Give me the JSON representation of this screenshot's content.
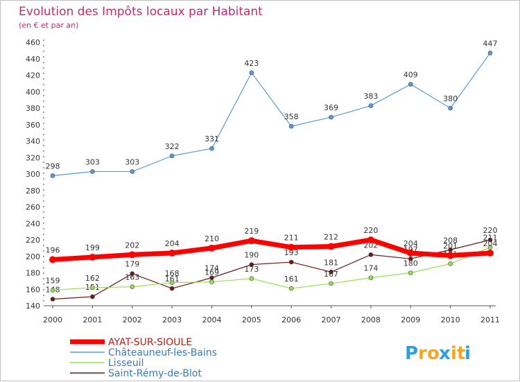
{
  "chart_data": {
    "type": "line",
    "title": "Evolution des Impôts locaux par Habitant",
    "subtitle": "(en € et par an)",
    "x": [
      "2000",
      "2001",
      "2002",
      "2003",
      "2004",
      "2005",
      "2006",
      "2007",
      "2008",
      "2009",
      "2010",
      "2011"
    ],
    "ylim": [
      140,
      460
    ],
    "yticks": [
      140,
      160,
      180,
      200,
      220,
      240,
      260,
      280,
      300,
      320,
      340,
      360,
      380,
      400,
      420,
      440,
      460
    ],
    "grid": false,
    "legend_position": "bottom-left",
    "series": [
      {
        "name": "AYAT-SUR-SIOULE",
        "color": "#ff0000",
        "values": [
          196,
          199,
          202,
          204,
          210,
          219,
          211,
          212,
          220,
          204,
          201,
          204
        ]
      },
      {
        "name": "Châteauneuf-les-Bains",
        "color": "#5b9bd5",
        "values": [
          298,
          303,
          303,
          322,
          331,
          423,
          358,
          369,
          383,
          409,
          380,
          447
        ]
      },
      {
        "name": "Lisseuil",
        "color": "#99dd55",
        "values": [
          159,
          162,
          163,
          168,
          169,
          173,
          161,
          167,
          174,
          180,
          191,
          211
        ]
      },
      {
        "name": "Saint-Rémy-de-Blot",
        "color": "#6b1a1a",
        "values": [
          148,
          151,
          179,
          161,
          174,
          190,
          193,
          181,
          202,
          197,
          208,
          220
        ]
      }
    ]
  },
  "logo": {
    "letters": [
      "P",
      "r",
      "o",
      "x",
      "i",
      "t",
      "i"
    ],
    "colors": [
      "#2aa0dc",
      "#f5a623",
      "#f5a623",
      "#2aa0dc",
      "#f5a623",
      "#f5a623",
      "#2aa0dc"
    ]
  }
}
